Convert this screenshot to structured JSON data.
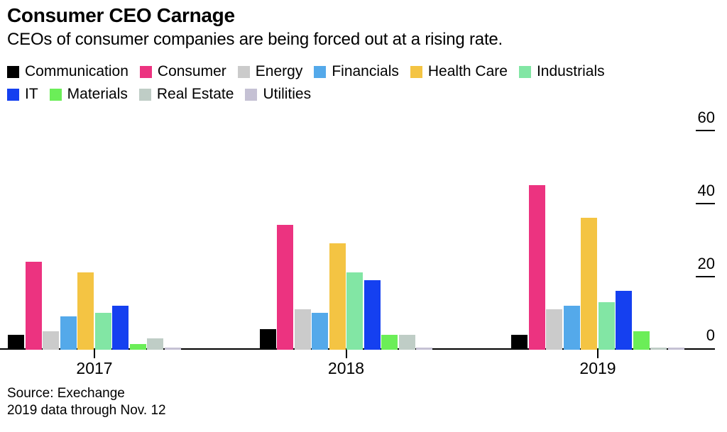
{
  "title": "Consumer CEO Carnage",
  "subtitle": "CEOs of consumer companies are being forced out at a rising rate.",
  "source": {
    "line1": "Source: Exechange",
    "line2": "2019 data through Nov. 12"
  },
  "chart_data": {
    "type": "bar",
    "title": "Consumer CEO Carnage",
    "subtitle": "CEOs of consumer companies are being forced out at a rising rate.",
    "categories": [
      "2017",
      "2018",
      "2019"
    ],
    "series": [
      {
        "name": "Communication",
        "color": "#000000",
        "values": [
          4,
          5.5,
          4
        ]
      },
      {
        "name": "Consumer",
        "color": "#ec3380",
        "values": [
          24,
          34,
          45
        ]
      },
      {
        "name": "Energy",
        "color": "#cbcbcb",
        "values": [
          5,
          11,
          11
        ]
      },
      {
        "name": "Financials",
        "color": "#54a9ea",
        "values": [
          9,
          10,
          12
        ]
      },
      {
        "name": "Health Care",
        "color": "#f4c443",
        "values": [
          21,
          29,
          36
        ]
      },
      {
        "name": "Industrials",
        "color": "#82e6a4",
        "values": [
          10,
          21,
          13
        ]
      },
      {
        "name": "IT",
        "color": "#1540f0",
        "values": [
          12,
          19,
          16
        ]
      },
      {
        "name": "Materials",
        "color": "#6bee58",
        "values": [
          1.5,
          4,
          5
        ]
      },
      {
        "name": "Real Estate",
        "color": "#bfcdc6",
        "values": [
          3,
          4,
          0.5
        ]
      },
      {
        "name": "Utilities",
        "color": "#c5c1d4",
        "values": [
          0.5,
          0.5,
          0.5
        ]
      }
    ],
    "xlabel": "",
    "ylabel": "",
    "ylim": [
      0,
      60
    ],
    "yticks": [
      0,
      20,
      40,
      60
    ],
    "yaxis_side": "right",
    "grid": false,
    "legend_position": "top",
    "legend_rows": [
      [
        "Communication",
        "Consumer",
        "Energy",
        "Financials",
        "Health Care",
        "Industrials"
      ],
      [
        "IT",
        "Materials",
        "Real Estate",
        "Utilities"
      ]
    ]
  }
}
